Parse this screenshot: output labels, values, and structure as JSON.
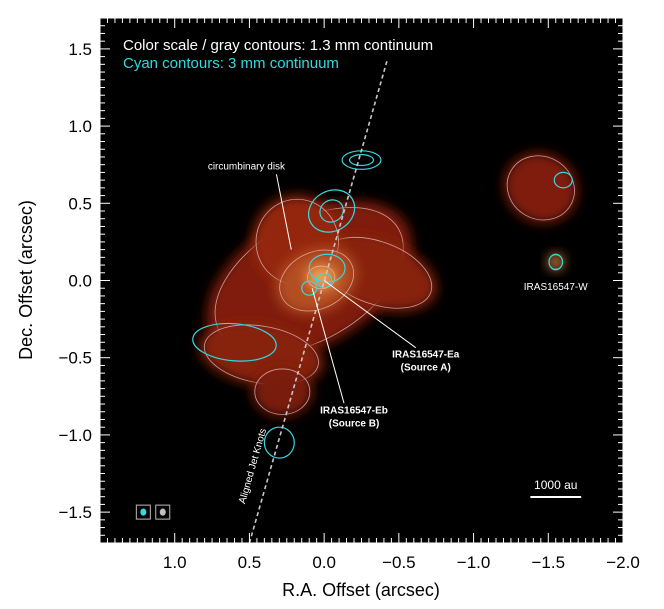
{
  "chart_data": {
    "type": "contour map",
    "xlabel": "R.A. Offset (arcsec)",
    "ylabel": "Dec. Offset (arcsec)",
    "xlim": [
      1.5,
      -2.0
    ],
    "ylim": [
      -1.7,
      1.7
    ],
    "x_ticks": [
      1.0,
      0.5,
      0.0,
      -0.5,
      -1.0,
      -1.5,
      -2.0
    ],
    "x_tick_labels": [
      "1.0",
      "0.5",
      "0.0",
      "−0.5",
      "−1.0",
      "−1.5",
      "−2.0"
    ],
    "y_ticks": [
      1.5,
      1.0,
      0.5,
      0.0,
      -0.5,
      -1.0,
      -1.5
    ],
    "y_tick_labels": [
      "1.5",
      "1.0",
      "0.5",
      "0.0",
      "−0.5",
      "−1.0",
      "−1.5"
    ],
    "legend": {
      "line1": "Color scale / gray contours: 1.3 mm continuum",
      "line2": "Cyan contours: 3 mm continuum"
    },
    "colors": {
      "background": "#000000",
      "emission_low": "#5a0f06",
      "emission_mid": "#9a2a10",
      "emission_peak": "#f0a050",
      "contour_gray": "#e6c0b4",
      "contour_cyan": "#35d8e0"
    },
    "jet_axis": {
      "label": "Aligned Jet Knots",
      "from": [
        0.5,
        -1.7
      ],
      "to": [
        -0.42,
        1.42
      ]
    },
    "annotations": [
      {
        "id": "circumbinary",
        "text": [
          "circumbinary disk"
        ],
        "bold": false,
        "label_at": [
          0.52,
          0.72
        ],
        "target": [
          0.22,
          0.2
        ]
      },
      {
        "id": "source-a",
        "text": [
          "IRAS16547-Ea",
          "(Source A)"
        ],
        "bold": true,
        "label_at": [
          -0.68,
          -0.5
        ],
        "target": [
          0.0,
          0.0
        ]
      },
      {
        "id": "source-b",
        "text": [
          "IRAS16547-Eb",
          "(Source B)"
        ],
        "bold": true,
        "label_at": [
          -0.2,
          -0.86
        ],
        "target": [
          0.08,
          -0.05
        ]
      },
      {
        "id": "west",
        "text": [
          "IRAS16547-W"
        ],
        "bold": false,
        "label_at": [
          -1.55,
          -0.06
        ],
        "target": null
      }
    ],
    "scale_bar": {
      "label": "1000 au",
      "x_from": -1.38,
      "x_to": -1.72,
      "y": -1.35
    },
    "beams": [
      {
        "name": "3 mm beam",
        "x": 1.21,
        "y": -1.5,
        "color": "#35d8e0"
      },
      {
        "name": "1.3 mm beam",
        "x": 1.08,
        "y": -1.5,
        "color": "#c0c0c0"
      }
    ],
    "sources": [
      {
        "name": "IRAS16547-Ea",
        "x": 0.0,
        "y": 0.0
      },
      {
        "name": "IRAS16547-Eb",
        "x": 0.1,
        "y": -0.05
      },
      {
        "name": "IRAS16547-W",
        "x": -1.55,
        "y": 0.12
      }
    ],
    "emission_1mm": [
      {
        "x": 0.1,
        "y": 0.0,
        "rx": 0.75,
        "ry": 0.42,
        "angle": -30,
        "level": 0.3
      },
      {
        "x": 0.42,
        "y": -0.48,
        "rx": 0.42,
        "ry": 0.2,
        "angle": 10,
        "level": 0.35
      },
      {
        "x": -0.35,
        "y": 0.05,
        "rx": 0.42,
        "ry": 0.22,
        "angle": 20,
        "level": 0.35
      },
      {
        "x": 0.18,
        "y": 0.25,
        "rx": 0.3,
        "ry": 0.3,
        "angle": 0,
        "level": 0.45
      },
      {
        "x": 0.05,
        "y": 0.0,
        "rx": 0.28,
        "ry": 0.2,
        "angle": -25,
        "level": 0.65
      },
      {
        "x": 0.02,
        "y": 0.02,
        "rx": 0.1,
        "ry": 0.08,
        "angle": 0,
        "level": 1.0
      },
      {
        "x": 0.28,
        "y": -0.72,
        "rx": 0.2,
        "ry": 0.16,
        "angle": 0,
        "level": 0.25
      },
      {
        "x": -1.45,
        "y": 0.6,
        "rx": 0.25,
        "ry": 0.22,
        "angle": 30,
        "level": 0.3
      },
      {
        "x": -1.55,
        "y": 0.12,
        "rx": 0.05,
        "ry": 0.05,
        "angle": 0,
        "level": 0.9
      }
    ],
    "contours_cyan": [
      {
        "x": -0.25,
        "y": 0.78,
        "rx": 0.13,
        "ry": 0.06,
        "angle": 0
      },
      {
        "x": -0.25,
        "y": 0.78,
        "rx": 0.08,
        "ry": 0.035,
        "angle": 0
      },
      {
        "x": -0.05,
        "y": 0.45,
        "rx": 0.16,
        "ry": 0.13,
        "angle": -30
      },
      {
        "x": -0.05,
        "y": 0.45,
        "rx": 0.08,
        "ry": 0.07,
        "angle": -30
      },
      {
        "x": -0.02,
        "y": 0.08,
        "rx": 0.12,
        "ry": 0.09,
        "angle": 0
      },
      {
        "x": 0.0,
        "y": 0.0,
        "rx": 0.05,
        "ry": 0.045,
        "angle": 0
      },
      {
        "x": 0.1,
        "y": -0.05,
        "rx": 0.05,
        "ry": 0.045,
        "angle": 0
      },
      {
        "x": -1.55,
        "y": 0.12,
        "rx": 0.045,
        "ry": 0.05,
        "angle": 0
      },
      {
        "x": 0.3,
        "y": -1.05,
        "rx": 0.1,
        "ry": 0.1,
        "angle": 0
      },
      {
        "x": 0.6,
        "y": -0.4,
        "rx": 0.28,
        "ry": 0.12,
        "angle": 5
      },
      {
        "x": -1.6,
        "y": 0.65,
        "rx": 0.06,
        "ry": 0.05,
        "angle": 0
      }
    ]
  }
}
